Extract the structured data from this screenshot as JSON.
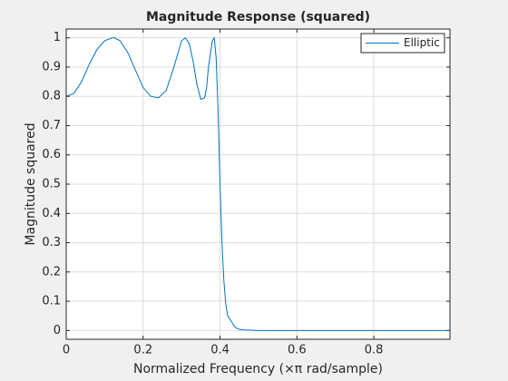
{
  "chart_data": {
    "type": "line",
    "title": "Magnitude Response (squared)",
    "xlabel": "Normalized Frequency (×π rad/sample)",
    "ylabel": "Magnitude squared",
    "x": [
      0,
      0.02,
      0.04,
      0.06,
      0.08,
      0.1,
      0.12,
      0.125,
      0.14,
      0.16,
      0.18,
      0.2,
      0.22,
      0.24,
      0.26,
      0.28,
      0.3,
      0.31,
      0.32,
      0.33,
      0.34,
      0.35,
      0.36,
      0.365,
      0.37,
      0.38,
      0.385,
      0.39,
      0.395,
      0.4,
      0.405,
      0.41,
      0.415,
      0.42,
      0.43,
      0.44,
      0.45,
      0.46,
      0.48,
      0.5,
      0.6,
      0.7,
      0.8,
      0.9,
      0.998
    ],
    "series": [
      {
        "name": "Elliptic",
        "color": "#0072bd",
        "values": [
          0.8,
          0.81,
          0.85,
          0.91,
          0.96,
          0.99,
          1.0,
          1.0,
          0.99,
          0.95,
          0.89,
          0.83,
          0.8,
          0.795,
          0.82,
          0.9,
          0.99,
          1.0,
          0.98,
          0.92,
          0.84,
          0.79,
          0.795,
          0.83,
          0.9,
          0.99,
          1.0,
          0.93,
          0.75,
          0.5,
          0.3,
          0.17,
          0.09,
          0.05,
          0.03,
          0.01,
          0.004,
          0.002,
          0.001,
          0,
          0,
          0,
          0,
          0,
          0
        ]
      }
    ],
    "xlim": [
      0,
      0.998
    ],
    "ylim": [
      -0.03,
      1.03
    ],
    "xticks": [
      0,
      0.2,
      0.4,
      0.6,
      0.8
    ],
    "yticks": [
      0,
      0.1,
      0.2,
      0.3,
      0.4,
      0.5,
      0.6,
      0.7,
      0.8,
      0.9,
      1
    ],
    "grid": true,
    "legend": "upper right"
  }
}
